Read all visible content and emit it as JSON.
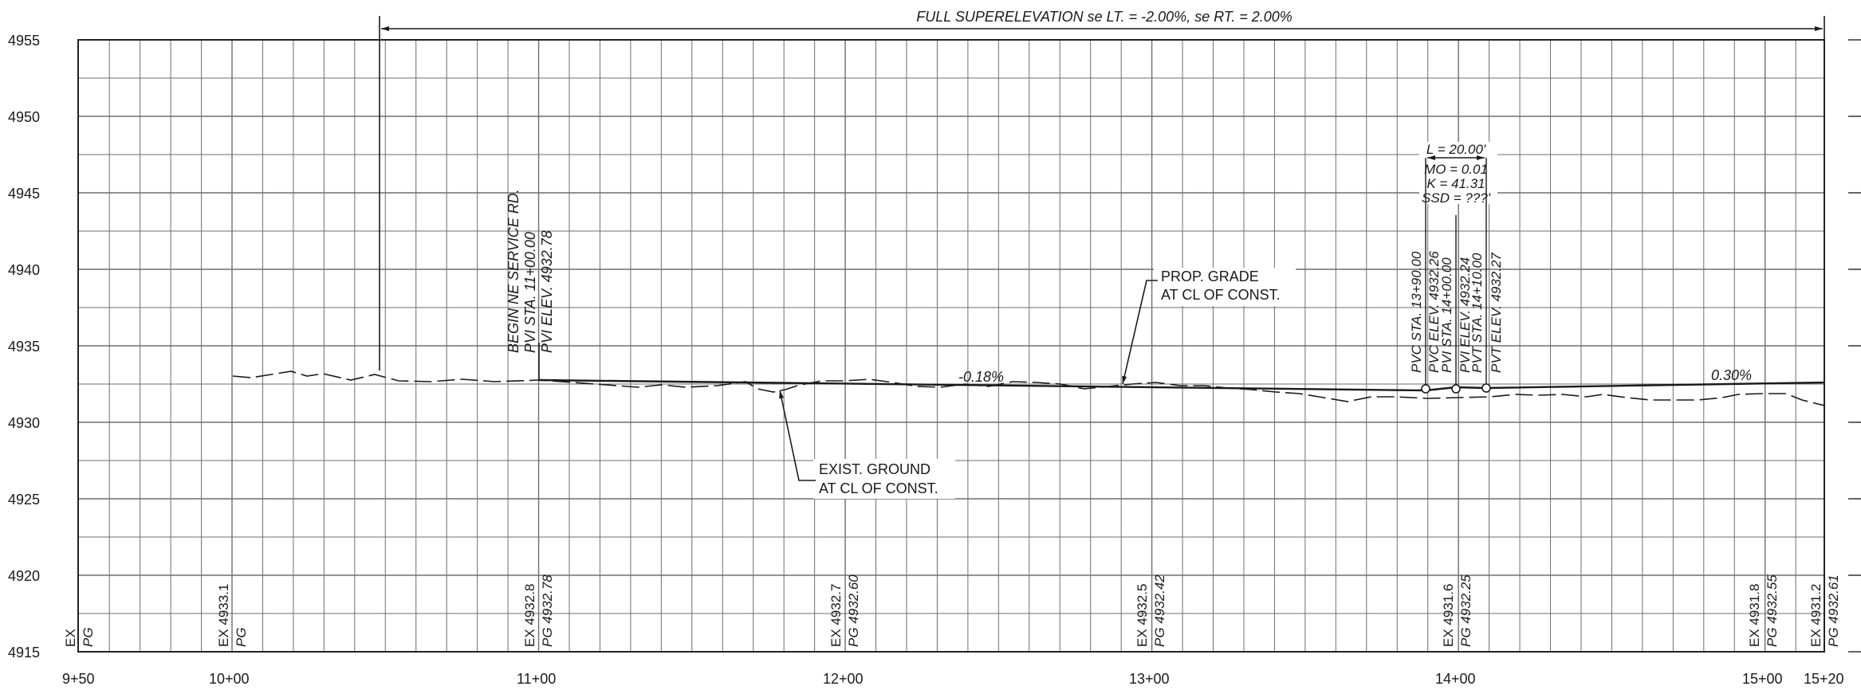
{
  "profile": {
    "superelevation_note": "FULL SUPERELEVATION se LT. = -2.00%, se RT. = 2.00%",
    "elevation_labels": [
      "4955",
      "4950",
      "4945",
      "4940",
      "4935",
      "4930",
      "4925",
      "4920",
      "4915"
    ],
    "station_labels": [
      "9+50",
      "10+00",
      "11+00",
      "12+00",
      "13+00",
      "14+00",
      "15+00",
      "15+20"
    ],
    "begin_note": [
      "BEGIN NE SERVICE RD.",
      "PVI STA. 11+00.00",
      "PVI ELEV. 4932.78"
    ],
    "prop_grade_label": [
      "PROP. GRADE",
      "AT CL OF CONST."
    ],
    "exist_ground_label": [
      "EXIST. GROUND",
      "AT CL OF CONST."
    ],
    "grade_left": "-0.18%",
    "grade_right": "0.30%",
    "curve": {
      "length": "L = 20.00'",
      "mo": "MO = 0.01",
      "k": "K = 41.31",
      "ssd": "SSD = ???'",
      "pvc_sta": "PVC STA. 13+90.00",
      "pvc_elev": "PVC ELEV. 4932.26",
      "pvi_sta": "PVI STA. 14+00.00",
      "pvi_elev": "PVI ELEV. 4932.24",
      "pvt_sta": "PVT STA. 14+10.00",
      "pvt_elev": "PVT ELEV. 4932.27"
    },
    "bottom_elevations": [
      {
        "ex": "EX",
        "pg": "PG"
      },
      {
        "ex": "EX 4933.1",
        "pg": "PG"
      },
      {
        "ex": "EX 4932.8",
        "pg": "PG 4932.78"
      },
      {
        "ex": "EX 4932.7",
        "pg": "PG 4932.60"
      },
      {
        "ex": "EX 4932.5",
        "pg": "PG 4932.42"
      },
      {
        "ex": "EX 4931.6",
        "pg": "PG 4932.25"
      },
      {
        "ex": "EX 4931.8",
        "pg": "PG 4932.55"
      },
      {
        "ex": "EX 4931.2",
        "pg": "PG 4932.61"
      }
    ]
  }
}
